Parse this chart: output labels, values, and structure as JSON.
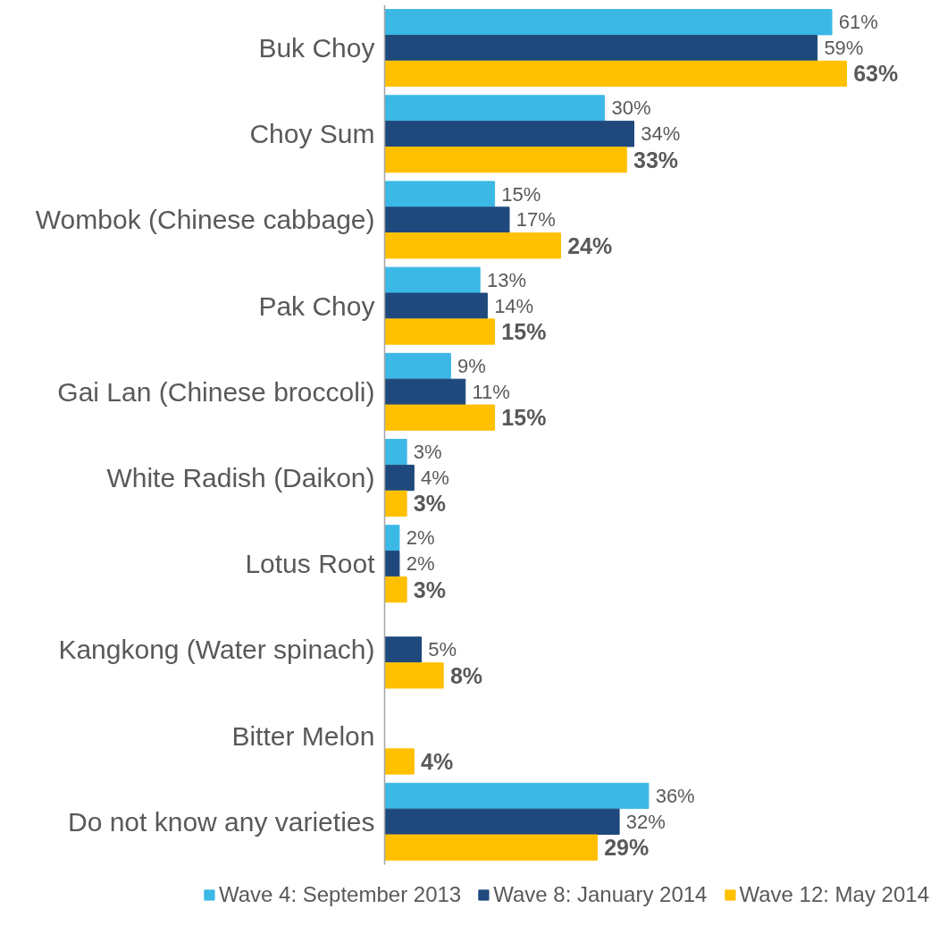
{
  "chart_data": {
    "type": "bar",
    "orientation": "horizontal",
    "categories": [
      "Buk Choy",
      "Choy Sum",
      "Wombok (Chinese cabbage)",
      "Pak Choy",
      "Gai Lan (Chinese broccoli)",
      "White Radish (Daikon)",
      "Lotus Root",
      "Kangkong (Water spinach)",
      "Bitter Melon",
      "Do not know any varieties"
    ],
    "series": [
      {
        "name": "Wave 4: September 2013",
        "color": "#3cb8e6",
        "values": [
          61,
          30,
          15,
          13,
          9,
          3,
          2,
          null,
          null,
          36
        ],
        "value_labels": [
          "61%",
          "30%",
          "15%",
          "13%",
          "9%",
          "3%",
          "2%",
          null,
          null,
          "36%"
        ]
      },
      {
        "name": "Wave 8: January 2014",
        "color": "#1f497d",
        "values": [
          59,
          34,
          17,
          14,
          11,
          4,
          2,
          5,
          null,
          32
        ],
        "value_labels": [
          "59%",
          "34%",
          "17%",
          "14%",
          "11%",
          "4%",
          "2%",
          "5%",
          null,
          "32%"
        ]
      },
      {
        "name": "Wave 12: May 2014",
        "color": "#ffc000",
        "values": [
          63,
          33,
          24,
          15,
          15,
          3,
          3,
          8,
          4,
          29
        ],
        "value_labels": [
          "63%",
          "33%",
          "24%",
          "15%",
          "15%",
          "3%",
          "3%",
          "8%",
          "4%",
          "29%"
        ]
      }
    ],
    "legend": "bottom",
    "grid": false
  }
}
